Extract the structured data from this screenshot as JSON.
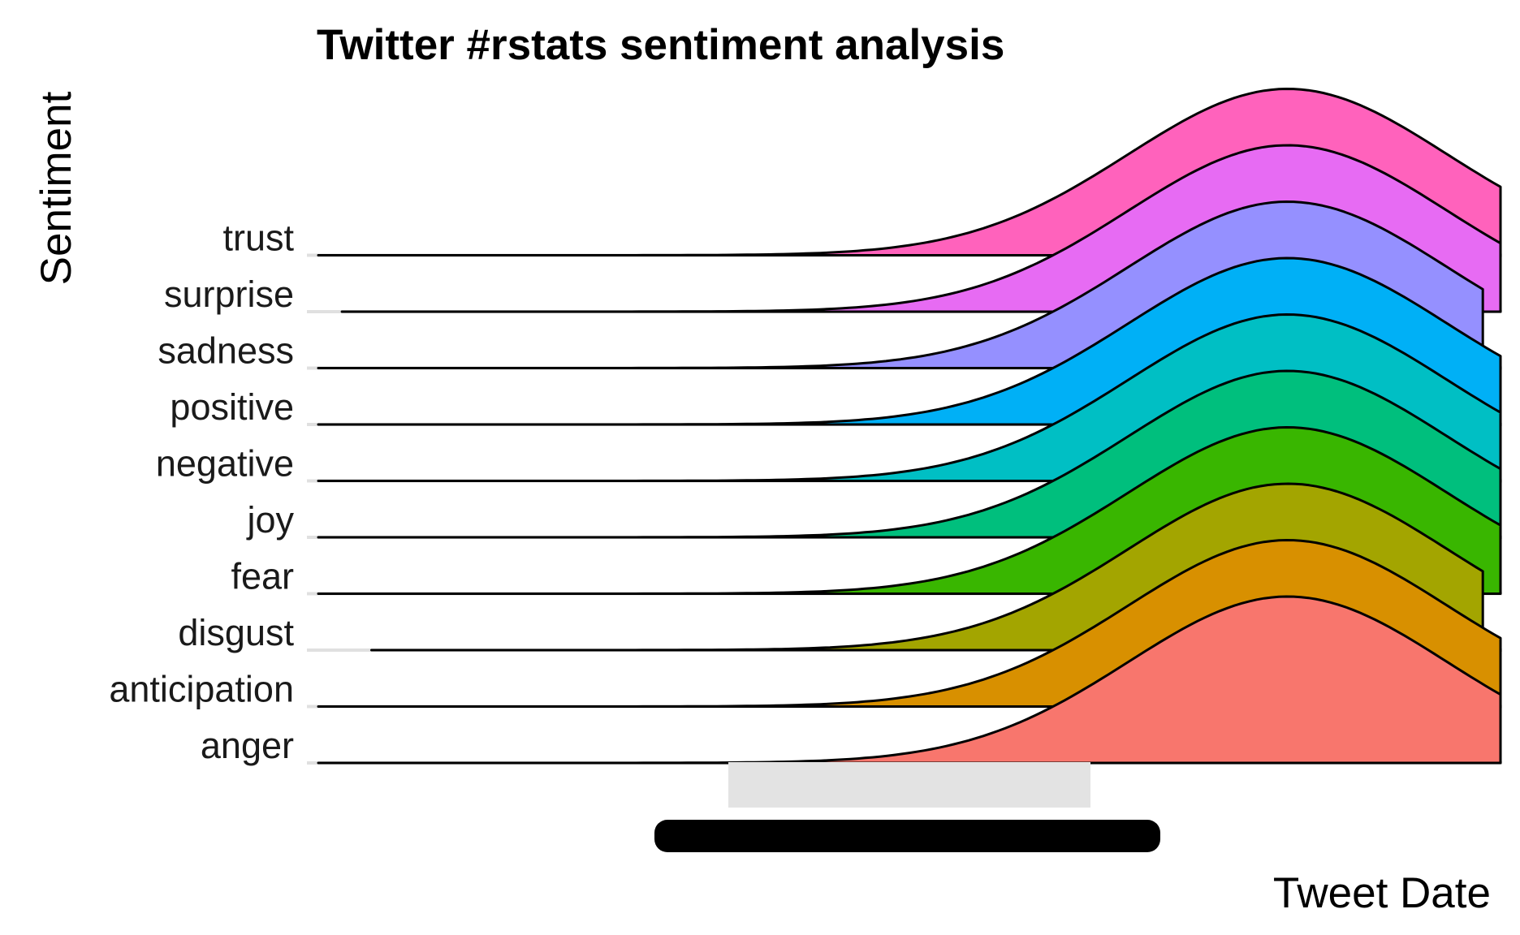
{
  "chart_data": {
    "type": "ridgeline",
    "title": "Twitter #rstats sentiment analysis",
    "xlabel": "Tweet Date",
    "ylabel": "Sentiment",
    "categories": [
      "anger",
      "anticipation",
      "disgust",
      "fear",
      "joy",
      "negative",
      "positive",
      "sadness",
      "surprise",
      "trust"
    ],
    "series": [
      {
        "name": "anger",
        "color": "#F8766D",
        "peak": 0.82,
        "width": 0.135,
        "start": 0.0,
        "end": 1.0
      },
      {
        "name": "anticipation",
        "color": "#D89000",
        "peak": 0.82,
        "width": 0.135,
        "start": 0.0,
        "end": 1.0
      },
      {
        "name": "disgust",
        "color": "#A3A500",
        "peak": 0.82,
        "width": 0.135,
        "start": 0.045,
        "end": 0.985
      },
      {
        "name": "fear",
        "color": "#39B600",
        "peak": 0.82,
        "width": 0.135,
        "start": 0.0,
        "end": 1.0
      },
      {
        "name": "joy",
        "color": "#00BF7D",
        "peak": 0.82,
        "width": 0.135,
        "start": 0.0,
        "end": 1.0
      },
      {
        "name": "negative",
        "color": "#00BFC4",
        "peak": 0.82,
        "width": 0.135,
        "start": 0.0,
        "end": 1.0
      },
      {
        "name": "positive",
        "color": "#00B0F6",
        "peak": 0.82,
        "width": 0.135,
        "start": 0.0,
        "end": 1.0
      },
      {
        "name": "sadness",
        "color": "#9590FF",
        "peak": 0.82,
        "width": 0.135,
        "start": 0.0,
        "end": 0.985
      },
      {
        "name": "surprise",
        "color": "#E76BF3",
        "peak": 0.82,
        "width": 0.135,
        "start": 0.02,
        "end": 1.0
      },
      {
        "name": "trust",
        "color": "#FF62BC",
        "peak": 0.82,
        "width": 0.135,
        "start": 0.0,
        "end": 1.0
      }
    ],
    "x_tick_labels_overlapping": true,
    "grid": false,
    "legend": "none"
  }
}
